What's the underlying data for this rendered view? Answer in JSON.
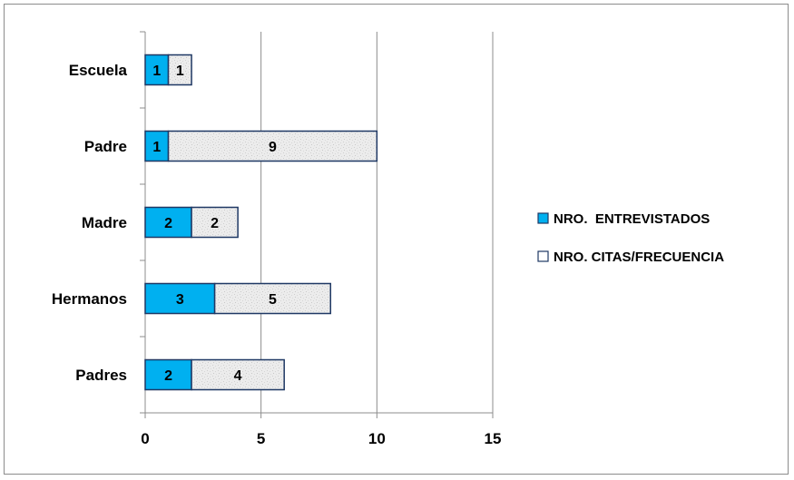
{
  "chart_data": {
    "type": "bar",
    "orientation": "horizontal",
    "stacked": true,
    "categories": [
      "Escuela",
      "Padre",
      "Madre",
      "Hermanos",
      "Padres"
    ],
    "series": [
      {
        "name": "NRO.  ENTREVISTADOS",
        "values": [
          1,
          1,
          2,
          3,
          2
        ],
        "color": "#00b0f0",
        "pattern": "solid"
      },
      {
        "name": "NRO. CITAS/FRECUENCIA",
        "values": [
          1,
          9,
          2,
          5,
          4
        ],
        "color": "#e6e6e6",
        "pattern": "speckled"
      }
    ],
    "xticks": [
      "0",
      "5",
      "10",
      "15"
    ],
    "xlim": [
      0,
      15
    ],
    "grid": "vertical major gridlines",
    "legend_position": "right",
    "bar_border_color": "#1f3864"
  }
}
